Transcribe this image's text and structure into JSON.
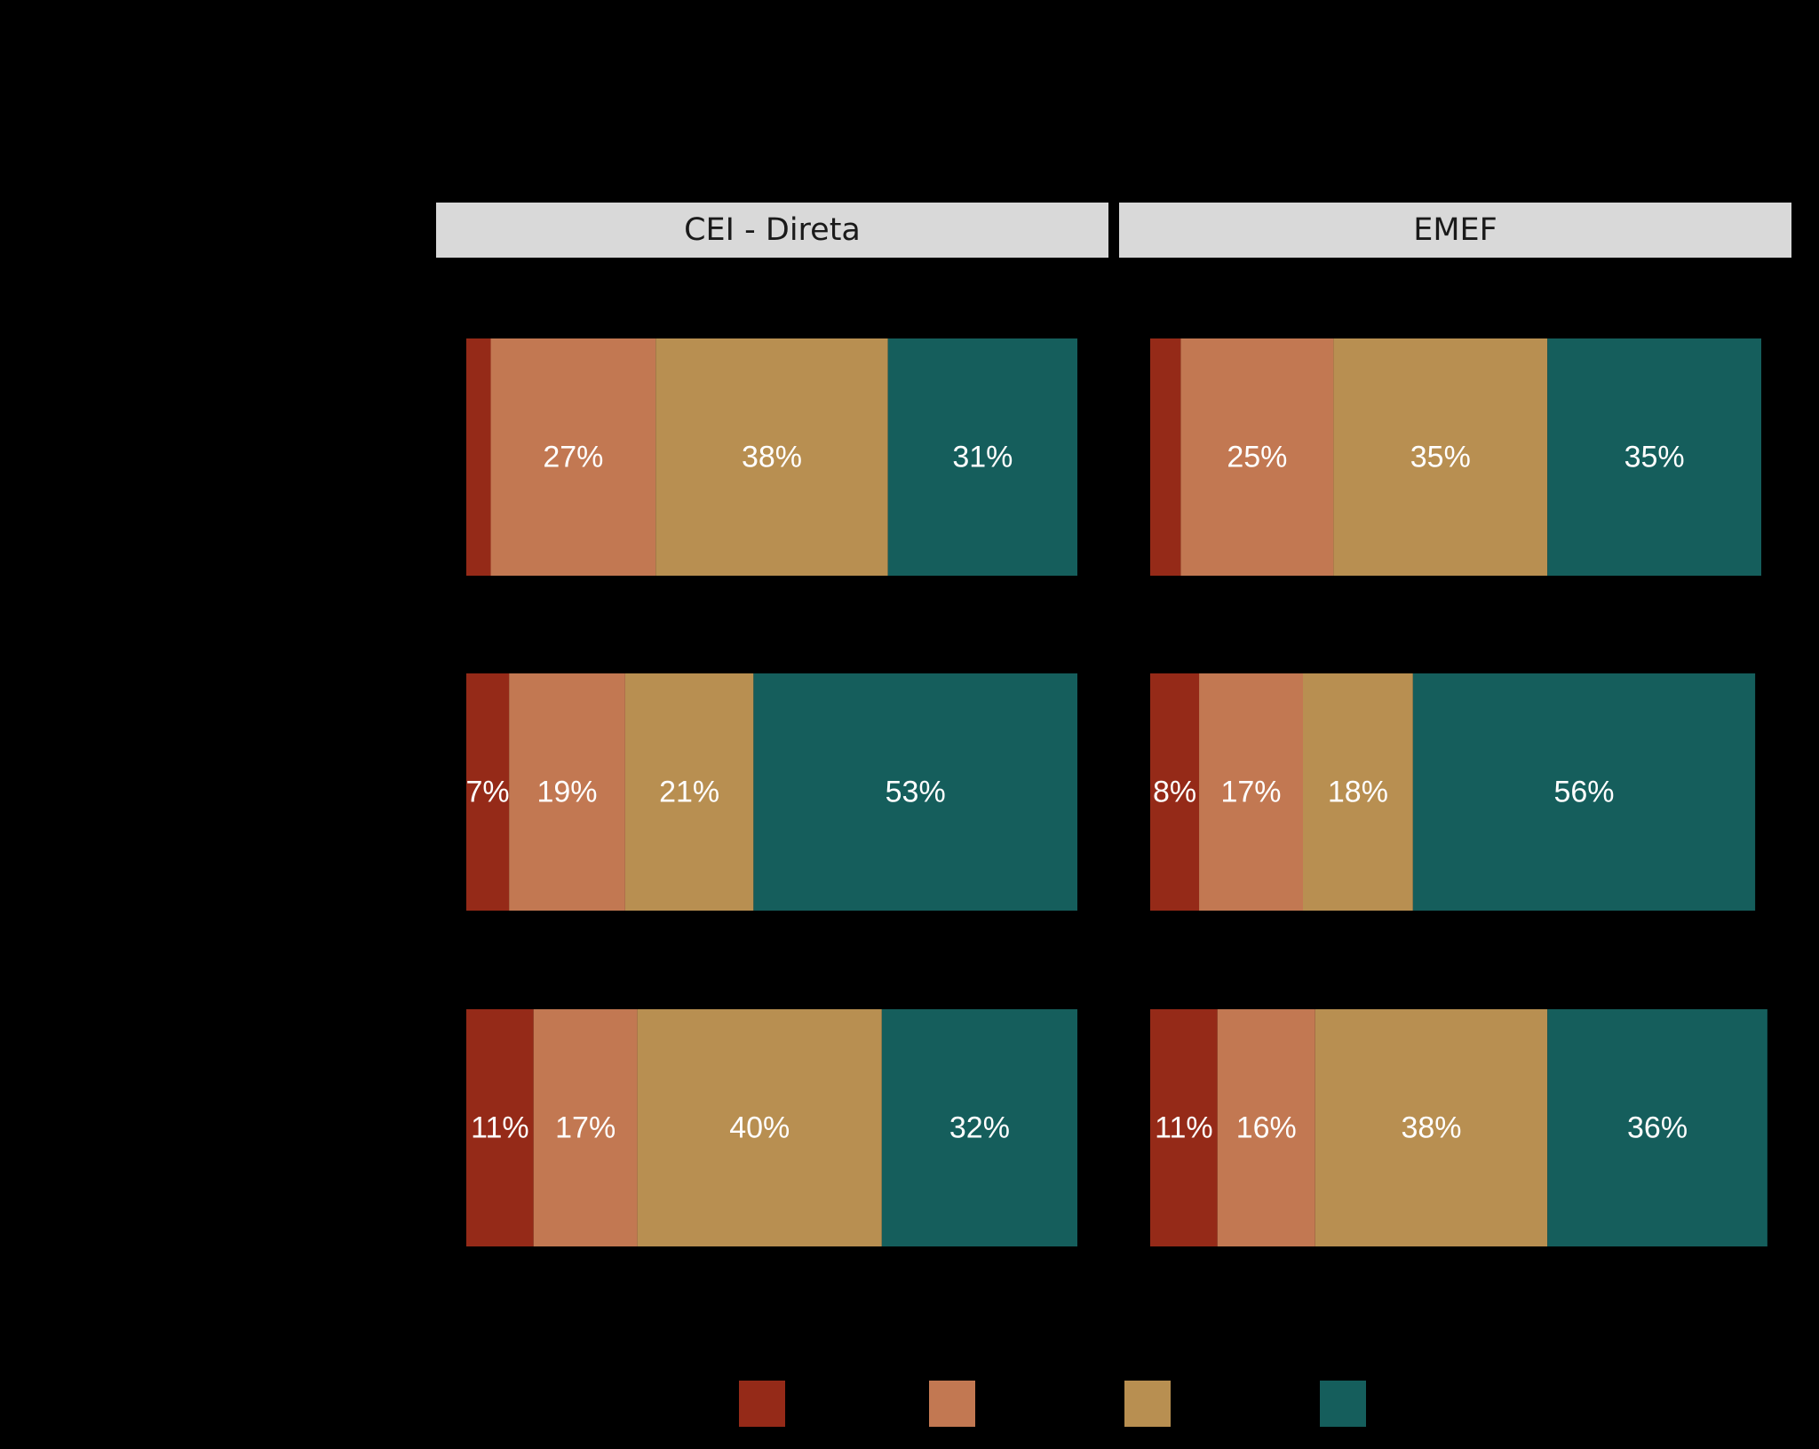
{
  "chart_data": {
    "type": "bar",
    "orientation": "horizontal-stacked-100",
    "facets": [
      {
        "title": "CEI - Direta",
        "rows": [
          {
            "values": [
              4,
              27,
              38,
              31
            ],
            "labels": [
              "",
              "27%",
              "38%",
              "31%"
            ]
          },
          {
            "values": [
              7,
              19,
              21,
              53
            ],
            "labels": [
              "7%",
              "19%",
              "21%",
              "53%"
            ]
          },
          {
            "values": [
              11,
              17,
              40,
              32
            ],
            "labels": [
              "11%",
              "17%",
              "40%",
              "32%"
            ]
          }
        ]
      },
      {
        "title": "EMEF",
        "rows": [
          {
            "values": [
              5,
              25,
              35,
              35
            ],
            "labels": [
              "",
              "25%",
              "35%",
              "35%"
            ]
          },
          {
            "values": [
              8,
              17,
              18,
              56
            ],
            "labels": [
              "8%",
              "17%",
              "18%",
              "56%"
            ]
          },
          {
            "values": [
              11,
              16,
              38,
              36
            ],
            "labels": [
              "11%",
              "16%",
              "38%",
              "36%"
            ]
          }
        ]
      }
    ],
    "series_colors": [
      "#952a18",
      "#c27852",
      "#b88f51",
      "#155e5c"
    ],
    "xlim": [
      0,
      100
    ],
    "legend": "bottom",
    "strip_color": "#d9d9d9",
    "background": "#000000"
  }
}
